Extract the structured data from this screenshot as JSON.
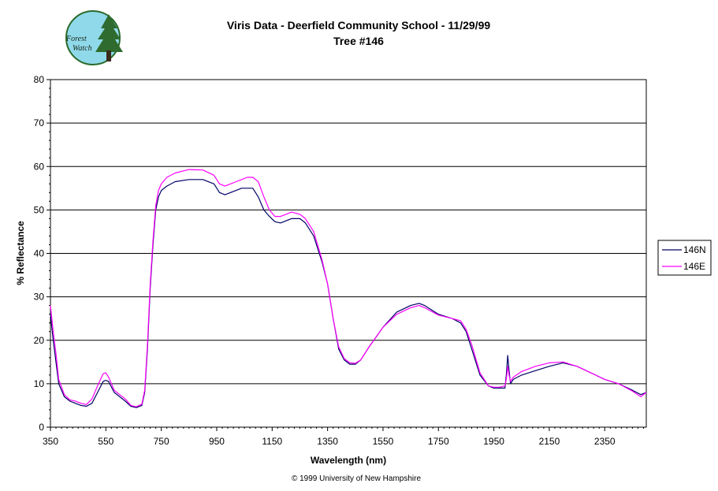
{
  "logo": {
    "line1": "Forest",
    "line2": "Watch"
  },
  "copyright": "© 1999 University of New Hampshire",
  "chart_data": {
    "type": "line",
    "title": "Viris Data - Deerfield Community School - 11/29/99",
    "subtitle": "Tree #146",
    "xlabel": "Wavelength (nm)",
    "ylabel": "% Reflectance",
    "xlim": [
      350,
      2500
    ],
    "ylim": [
      0,
      80
    ],
    "xticks": [
      350,
      550,
      750,
      950,
      1150,
      1350,
      1550,
      1750,
      1950,
      2150,
      2350
    ],
    "yticks": [
      0,
      10,
      20,
      30,
      40,
      50,
      60,
      70,
      80
    ],
    "grid": "horizontal",
    "legend_position": "right",
    "series": [
      {
        "name": "146N",
        "color": "#000066",
        "x": [
          350,
          360,
          370,
          380,
          400,
          420,
          440,
          460,
          480,
          500,
          520,
          540,
          550,
          560,
          580,
          600,
          620,
          640,
          660,
          680,
          690,
          700,
          710,
          720,
          730,
          740,
          750,
          770,
          800,
          850,
          900,
          940,
          960,
          980,
          1000,
          1020,
          1040,
          1060,
          1080,
          1100,
          1120,
          1140,
          1160,
          1180,
          1200,
          1220,
          1250,
          1270,
          1300,
          1330,
          1350,
          1370,
          1390,
          1410,
          1430,
          1450,
          1470,
          1500,
          1550,
          1600,
          1650,
          1680,
          1700,
          1750,
          1800,
          1830,
          1850,
          1870,
          1900,
          1930,
          1950,
          1970,
          1990,
          1995,
          2000,
          2005,
          2010,
          2020,
          2050,
          2100,
          2150,
          2200,
          2250,
          2300,
          2350,
          2400,
          2450,
          2480,
          2500
        ],
        "y": [
          26,
          20,
          15,
          10,
          7,
          6,
          5.5,
          5,
          4.8,
          5.5,
          8,
          10.5,
          10.8,
          10.5,
          8,
          7,
          6,
          4.8,
          4.5,
          5,
          8,
          18,
          32,
          42,
          50,
          53,
          54.5,
          55.5,
          56.5,
          57,
          57,
          56,
          54,
          53.5,
          54,
          54.5,
          55,
          55,
          55,
          53,
          50,
          48.5,
          47.3,
          47,
          47.5,
          48,
          48,
          47,
          44,
          38,
          33,
          25,
          18,
          15.5,
          14.5,
          14.5,
          15.5,
          18.5,
          23,
          26.5,
          28,
          28.5,
          28,
          26,
          25,
          24,
          22,
          18,
          12,
          9.5,
          9,
          9,
          9,
          12,
          16.5,
          13,
          10,
          11,
          12,
          13,
          14,
          14.8,
          14,
          12.5,
          11,
          10,
          8.5,
          7.5,
          8
        ]
      },
      {
        "name": "146E",
        "color": "#ff00ff",
        "x": [
          350,
          360,
          370,
          380,
          400,
          420,
          440,
          460,
          480,
          500,
          520,
          540,
          550,
          560,
          580,
          600,
          620,
          640,
          660,
          680,
          690,
          700,
          710,
          720,
          730,
          740,
          750,
          770,
          800,
          850,
          900,
          940,
          960,
          980,
          1000,
          1020,
          1040,
          1060,
          1080,
          1100,
          1120,
          1140,
          1160,
          1180,
          1200,
          1220,
          1250,
          1270,
          1300,
          1330,
          1350,
          1370,
          1390,
          1410,
          1430,
          1450,
          1470,
          1500,
          1550,
          1600,
          1650,
          1680,
          1700,
          1750,
          1800,
          1830,
          1850,
          1870,
          1900,
          1930,
          1950,
          1970,
          1990,
          1995,
          2000,
          2005,
          2010,
          2020,
          2050,
          2100,
          2150,
          2200,
          2250,
          2300,
          2350,
          2400,
          2450,
          2480,
          2500
        ],
        "y": [
          28,
          22,
          17,
          11,
          7.5,
          6.3,
          6,
          5.5,
          5.2,
          6.5,
          9.5,
          12.3,
          12.5,
          11.5,
          8.5,
          7.5,
          6.5,
          5,
          4.7,
          5.3,
          8.5,
          19,
          33,
          43,
          51,
          54.5,
          56,
          57.5,
          58.5,
          59.3,
          59.2,
          58,
          56,
          55.5,
          56,
          56.5,
          57,
          57.5,
          57.5,
          56.5,
          53,
          50,
          48.5,
          48.5,
          49,
          49.5,
          49,
          48,
          45,
          38.5,
          33,
          25,
          18.5,
          15.8,
          14.8,
          14.7,
          15.5,
          18.5,
          23,
          26,
          27.5,
          28,
          27.5,
          25.8,
          25,
          24.5,
          22.5,
          19,
          12.5,
          9.5,
          9.2,
          9.2,
          9.5,
          11,
          14,
          12,
          10.5,
          11.5,
          12.8,
          14,
          14.8,
          15,
          14,
          12.5,
          11,
          10,
          8.3,
          7,
          8
        ]
      }
    ]
  }
}
